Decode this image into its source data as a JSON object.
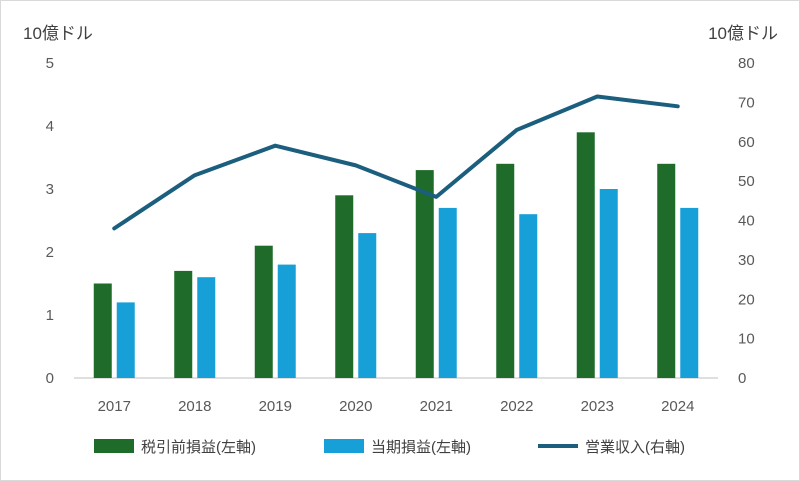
{
  "chart_data": {
    "type": "bar",
    "categories": [
      "2017",
      "2018",
      "2019",
      "2020",
      "2021",
      "2022",
      "2023",
      "2024"
    ],
    "series": [
      {
        "name": "税引前損益(左軸)",
        "type": "bar",
        "axis": "left",
        "color": "#1e6b2a",
        "values": [
          1.5,
          1.7,
          2.1,
          2.9,
          3.3,
          3.4,
          3.9,
          3.4
        ]
      },
      {
        "name": "当期損益(左軸)",
        "type": "bar",
        "axis": "left",
        "color": "#17a0d8",
        "values": [
          1.2,
          1.6,
          1.8,
          2.3,
          2.7,
          2.6,
          3.0,
          2.7
        ]
      },
      {
        "name": "営業収入(右軸)",
        "type": "line",
        "axis": "right",
        "color": "#1b5e7e",
        "values": [
          38,
          51.5,
          59,
          54,
          46,
          63,
          71.5,
          69
        ]
      }
    ],
    "y_left": {
      "unit_label": "10億ドル",
      "ylim": [
        0,
        5
      ],
      "ticks": [
        "0",
        "1",
        "2",
        "3",
        "4",
        "5"
      ]
    },
    "y_right": {
      "unit_label": "10億ドル",
      "ylim": [
        0,
        80
      ],
      "ticks": [
        "0",
        "10",
        "20",
        "30",
        "40",
        "50",
        "60",
        "70",
        "80"
      ]
    },
    "grid": false,
    "legend_position": "bottom"
  }
}
